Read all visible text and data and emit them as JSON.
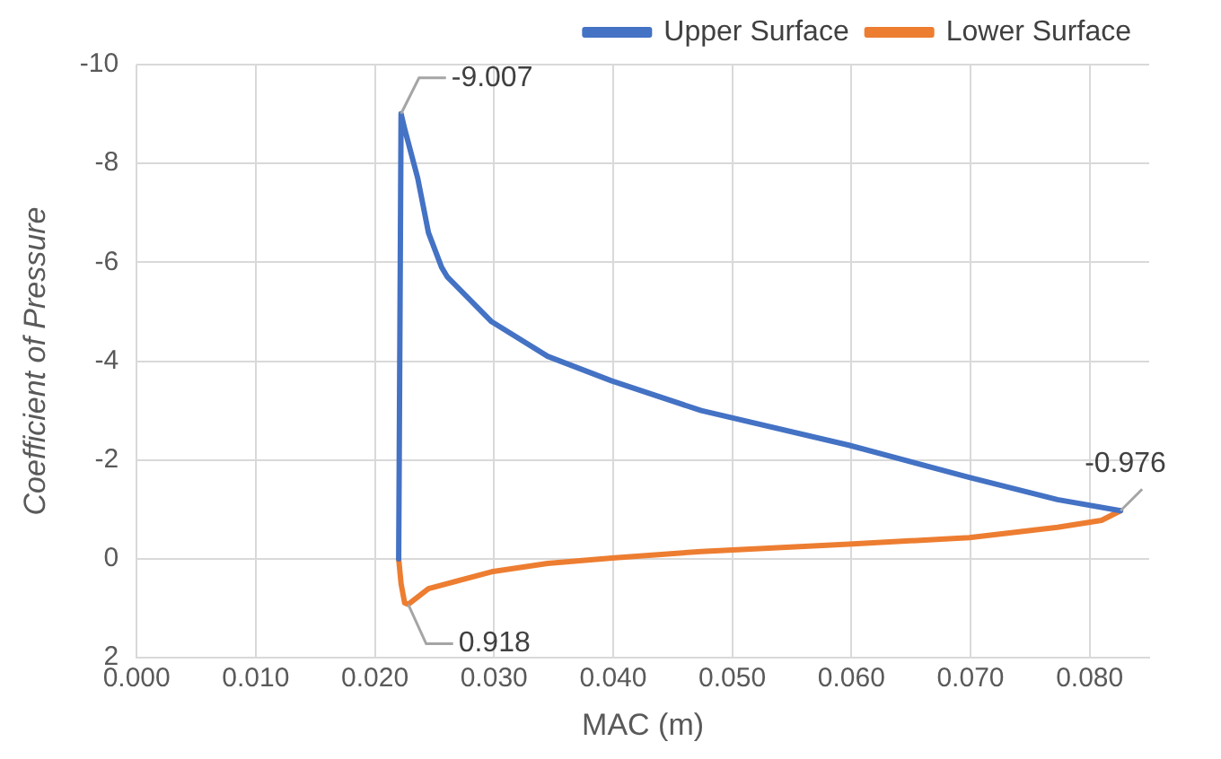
{
  "chart_data": {
    "type": "line",
    "xlabel": "MAC (m)",
    "ylabel": "Coefficient of Pressure",
    "xlim": [
      0,
      0.085
    ],
    "xticks": [
      {
        "value": 0,
        "label": "0.000"
      },
      {
        "value": 0.01,
        "label": "0.010"
      },
      {
        "value": 0.02,
        "label": "0.020"
      },
      {
        "value": 0.03,
        "label": "0.030"
      },
      {
        "value": 0.04,
        "label": "0.040"
      },
      {
        "value": 0.05,
        "label": "0.050"
      },
      {
        "value": 0.06,
        "label": "0.060"
      },
      {
        "value": 0.07,
        "label": "0.070"
      },
      {
        "value": 0.08,
        "label": "0.080"
      }
    ],
    "ylim": [
      2,
      -10
    ],
    "yticks": [
      -10,
      -8,
      -6,
      -4,
      -2,
      0,
      2
    ],
    "grid": true,
    "legend": "top",
    "marker": "none",
    "line_style": "solid",
    "series": [
      {
        "name": "Upper Surface",
        "color": "#4472c4",
        "x": [
          0.022,
          0.0222,
          0.0225,
          0.0236,
          0.0245,
          0.0256,
          0.0261,
          0.0298,
          0.0345,
          0.0399,
          0.0474,
          0.0598,
          0.0699,
          0.0773,
          0.0826
        ],
        "values": [
          0,
          -9.007,
          -8.7,
          -7.7,
          -6.6,
          -5.9,
          -5.7,
          -4.8,
          -4.1,
          -3.6,
          -3,
          -2.3,
          -1.65,
          -1.2,
          -0.976
        ]
      },
      {
        "name": "Lower Surface",
        "color": "#ed7d31",
        "x": [
          0.022,
          0.0222,
          0.0225,
          0.0228,
          0.0245,
          0.0298,
          0.0345,
          0.0399,
          0.0474,
          0.0598,
          0.0699,
          0.0773,
          0.081,
          0.0826
        ],
        "values": [
          0,
          0.5,
          0.89,
          0.918,
          0.6,
          0.26,
          0.09,
          -0.02,
          -0.15,
          -0.3,
          -0.43,
          -0.64,
          -0.78,
          -0.976
        ]
      }
    ],
    "annotations": [
      {
        "text": "-9.007",
        "x": 0.0222,
        "y": -9.007
      },
      {
        "text": "0.918",
        "x": 0.0228,
        "y": 0.918
      },
      {
        "text": "-0.976",
        "x": 0.0826,
        "y": -0.976
      }
    ]
  }
}
